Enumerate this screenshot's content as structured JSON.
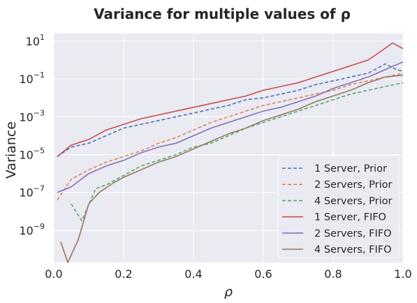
{
  "chart_data": {
    "type": "line",
    "title": "Variance for multiple values of ρ",
    "xlabel": "ρ",
    "ylabel": "Variance",
    "xlim": [
      0.0,
      1.0
    ],
    "ylim_log10": [
      -10.7,
      1.4
    ],
    "yscale": "log",
    "grid": true,
    "legend_position": "lower-right",
    "x_ticks": [
      "0.0",
      "0.2",
      "0.4",
      "0.6",
      "0.8",
      "1.0"
    ],
    "y_ticks": [
      {
        "exp": "1"
      },
      {
        "exp": "−1"
      },
      {
        "exp": "−3"
      },
      {
        "exp": "−5"
      },
      {
        "exp": "−7"
      },
      {
        "exp": "−9"
      }
    ],
    "series": [
      {
        "name": "1 Server, Prior",
        "color": "#4c72b0",
        "dash": true,
        "points": [
          [
            0.01,
            -5.1
          ],
          [
            0.05,
            -4.6
          ],
          [
            0.1,
            -4.4
          ],
          [
            0.15,
            -4.0
          ],
          [
            0.2,
            -3.6
          ],
          [
            0.25,
            -3.4
          ],
          [
            0.3,
            -3.2
          ],
          [
            0.35,
            -3.0
          ],
          [
            0.4,
            -2.8
          ],
          [
            0.45,
            -2.6
          ],
          [
            0.5,
            -2.4
          ],
          [
            0.55,
            -2.1
          ],
          [
            0.6,
            -2.0
          ],
          [
            0.65,
            -1.8
          ],
          [
            0.7,
            -1.6
          ],
          [
            0.75,
            -1.3
          ],
          [
            0.8,
            -1.1
          ],
          [
            0.85,
            -0.9
          ],
          [
            0.9,
            -0.7
          ],
          [
            0.95,
            -0.2
          ],
          [
            0.98,
            -0.5
          ],
          [
            1.0,
            -0.6
          ]
        ]
      },
      {
        "name": "2 Servers, Prior",
        "color": "#dd8452",
        "dash": true,
        "points": [
          [
            0.01,
            -7.4
          ],
          [
            0.05,
            -6.3
          ],
          [
            0.1,
            -5.8
          ],
          [
            0.15,
            -5.4
          ],
          [
            0.2,
            -5.1
          ],
          [
            0.25,
            -4.8
          ],
          [
            0.3,
            -4.4
          ],
          [
            0.35,
            -4.1
          ],
          [
            0.4,
            -3.7
          ],
          [
            0.45,
            -3.3
          ],
          [
            0.5,
            -3.0
          ],
          [
            0.55,
            -2.7
          ],
          [
            0.6,
            -2.4
          ],
          [
            0.65,
            -2.2
          ],
          [
            0.7,
            -2.0
          ],
          [
            0.75,
            -1.8
          ],
          [
            0.8,
            -1.6
          ],
          [
            0.85,
            -1.3
          ],
          [
            0.9,
            -1.1
          ],
          [
            0.95,
            -0.9
          ],
          [
            1.0,
            -0.7
          ]
        ]
      },
      {
        "name": "4 Servers, Prior",
        "color": "#55a868",
        "dash": true,
        "points": [
          [
            0.05,
            -7.6
          ],
          [
            0.08,
            -8.5
          ],
          [
            0.12,
            -6.8
          ],
          [
            0.15,
            -6.6
          ],
          [
            0.2,
            -6.1
          ],
          [
            0.25,
            -5.6
          ],
          [
            0.3,
            -5.3
          ],
          [
            0.35,
            -5.0
          ],
          [
            0.4,
            -4.6
          ],
          [
            0.45,
            -4.4
          ],
          [
            0.5,
            -4.0
          ],
          [
            0.55,
            -3.6
          ],
          [
            0.6,
            -3.3
          ],
          [
            0.65,
            -3.0
          ],
          [
            0.7,
            -2.7
          ],
          [
            0.75,
            -2.4
          ],
          [
            0.8,
            -2.1
          ],
          [
            0.85,
            -1.8
          ],
          [
            0.9,
            -1.6
          ],
          [
            0.95,
            -1.4
          ],
          [
            1.0,
            -1.2
          ]
        ]
      },
      {
        "name": "1 Server, FIFO",
        "color": "#c44e52",
        "dash": false,
        "points": [
          [
            0.01,
            -5.1
          ],
          [
            0.05,
            -4.5
          ],
          [
            0.1,
            -4.2
          ],
          [
            0.15,
            -3.7
          ],
          [
            0.2,
            -3.4
          ],
          [
            0.25,
            -3.1
          ],
          [
            0.3,
            -2.9
          ],
          [
            0.35,
            -2.7
          ],
          [
            0.4,
            -2.5
          ],
          [
            0.45,
            -2.3
          ],
          [
            0.5,
            -2.1
          ],
          [
            0.55,
            -1.9
          ],
          [
            0.6,
            -1.6
          ],
          [
            0.65,
            -1.4
          ],
          [
            0.7,
            -1.2
          ],
          [
            0.75,
            -0.9
          ],
          [
            0.8,
            -0.6
          ],
          [
            0.85,
            -0.3
          ],
          [
            0.9,
            0.0
          ],
          [
            0.94,
            0.5
          ],
          [
            0.97,
            0.9
          ],
          [
            1.0,
            0.6
          ]
        ]
      },
      {
        "name": "2 Servers, FIFO",
        "color": "#8172b3",
        "dash": false,
        "points": [
          [
            0.01,
            -7.0
          ],
          [
            0.05,
            -6.7
          ],
          [
            0.1,
            -6.0
          ],
          [
            0.15,
            -5.6
          ],
          [
            0.2,
            -5.3
          ],
          [
            0.25,
            -4.9
          ],
          [
            0.3,
            -4.6
          ],
          [
            0.35,
            -4.4
          ],
          [
            0.4,
            -4.0
          ],
          [
            0.45,
            -3.6
          ],
          [
            0.5,
            -3.3
          ],
          [
            0.55,
            -3.0
          ],
          [
            0.6,
            -2.7
          ],
          [
            0.65,
            -2.5
          ],
          [
            0.7,
            -2.2
          ],
          [
            0.75,
            -1.9
          ],
          [
            0.8,
            -1.5
          ],
          [
            0.85,
            -1.2
          ],
          [
            0.9,
            -0.9
          ],
          [
            0.95,
            -0.5
          ],
          [
            1.0,
            -0.1
          ]
        ]
      },
      {
        "name": "4 Servers, FIFO",
        "color": "#937860",
        "dash": false,
        "points": [
          [
            0.02,
            -9.6
          ],
          [
            0.04,
            -10.7
          ],
          [
            0.07,
            -9.5
          ],
          [
            0.1,
            -7.6
          ],
          [
            0.13,
            -7.0
          ],
          [
            0.17,
            -6.5
          ],
          [
            0.2,
            -6.2
          ],
          [
            0.25,
            -5.8
          ],
          [
            0.3,
            -5.4
          ],
          [
            0.35,
            -5.1
          ],
          [
            0.4,
            -4.7
          ],
          [
            0.45,
            -4.3
          ],
          [
            0.5,
            -3.9
          ],
          [
            0.55,
            -3.6
          ],
          [
            0.6,
            -3.2
          ],
          [
            0.65,
            -2.9
          ],
          [
            0.7,
            -2.6
          ],
          [
            0.75,
            -2.2
          ],
          [
            0.8,
            -1.9
          ],
          [
            0.85,
            -1.6
          ],
          [
            0.9,
            -1.2
          ],
          [
            0.95,
            -0.9
          ],
          [
            1.0,
            -0.8
          ]
        ]
      }
    ]
  }
}
